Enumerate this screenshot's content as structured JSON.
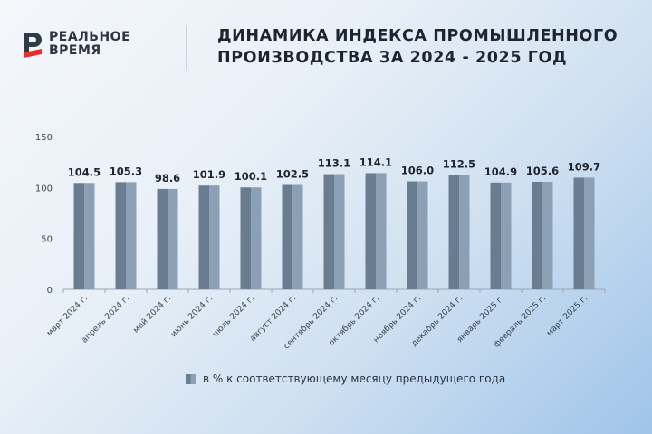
{
  "logo": {
    "line1": "РЕАЛЬНОЕ",
    "line2": "ВРЕМЯ",
    "icon": "realnoe-vremya-logo-icon",
    "colors": {
      "mark_dark": "#2f3a4a",
      "mark_red": "#e53030"
    }
  },
  "title": {
    "line1": "ДИНАМИКА ИНДЕКСА ПРОМЫШЛЕННОГО",
    "line2": "ПРОИЗВОДСТВА ЗА 2024 - 2025 ГОД"
  },
  "legend": {
    "label": "в % к соответствующему месяцу предыдущего года"
  },
  "chart_data": {
    "type": "bar",
    "categories": [
      "март 2024 г.",
      "апрель 2024 г.",
      "май 2024 г.",
      "июнь 2024 г.",
      "июль 2024 г.",
      "август 2024 г.",
      "сентябрь 2024 г.",
      "октябрь 2024 г.",
      "ноябрь 2024 г.",
      "декабрь 2024 г.",
      "январь 2025 г.",
      "февраль 2025 г.",
      "март 2025 г."
    ],
    "series": [
      {
        "name": "в % к соответствующему месяцу предыдущего года",
        "values": [
          104.5,
          105.3,
          98.6,
          101.9,
          100.1,
          102.5,
          113.1,
          114.1,
          106.0,
          112.5,
          104.9,
          105.6,
          109.7
        ],
        "labels": [
          "104.5",
          "105.3",
          "98.6",
          "101.9",
          "100.1",
          "102.5",
          "113.1",
          "114.1",
          "106.0",
          "112.5",
          "104.9",
          "105.6",
          "109.7"
        ]
      }
    ],
    "yticks": [
      "150",
      "100",
      "50",
      "0"
    ],
    "ylim": [
      0,
      150
    ],
    "grid": false,
    "legend_position": "bottom",
    "colors": {
      "bar_dark": "#6a7d90",
      "bar_light": "#8ba0b5",
      "axis": "#9aa6b3",
      "label": "#1e2430",
      "tick": "#3a4350"
    }
  }
}
